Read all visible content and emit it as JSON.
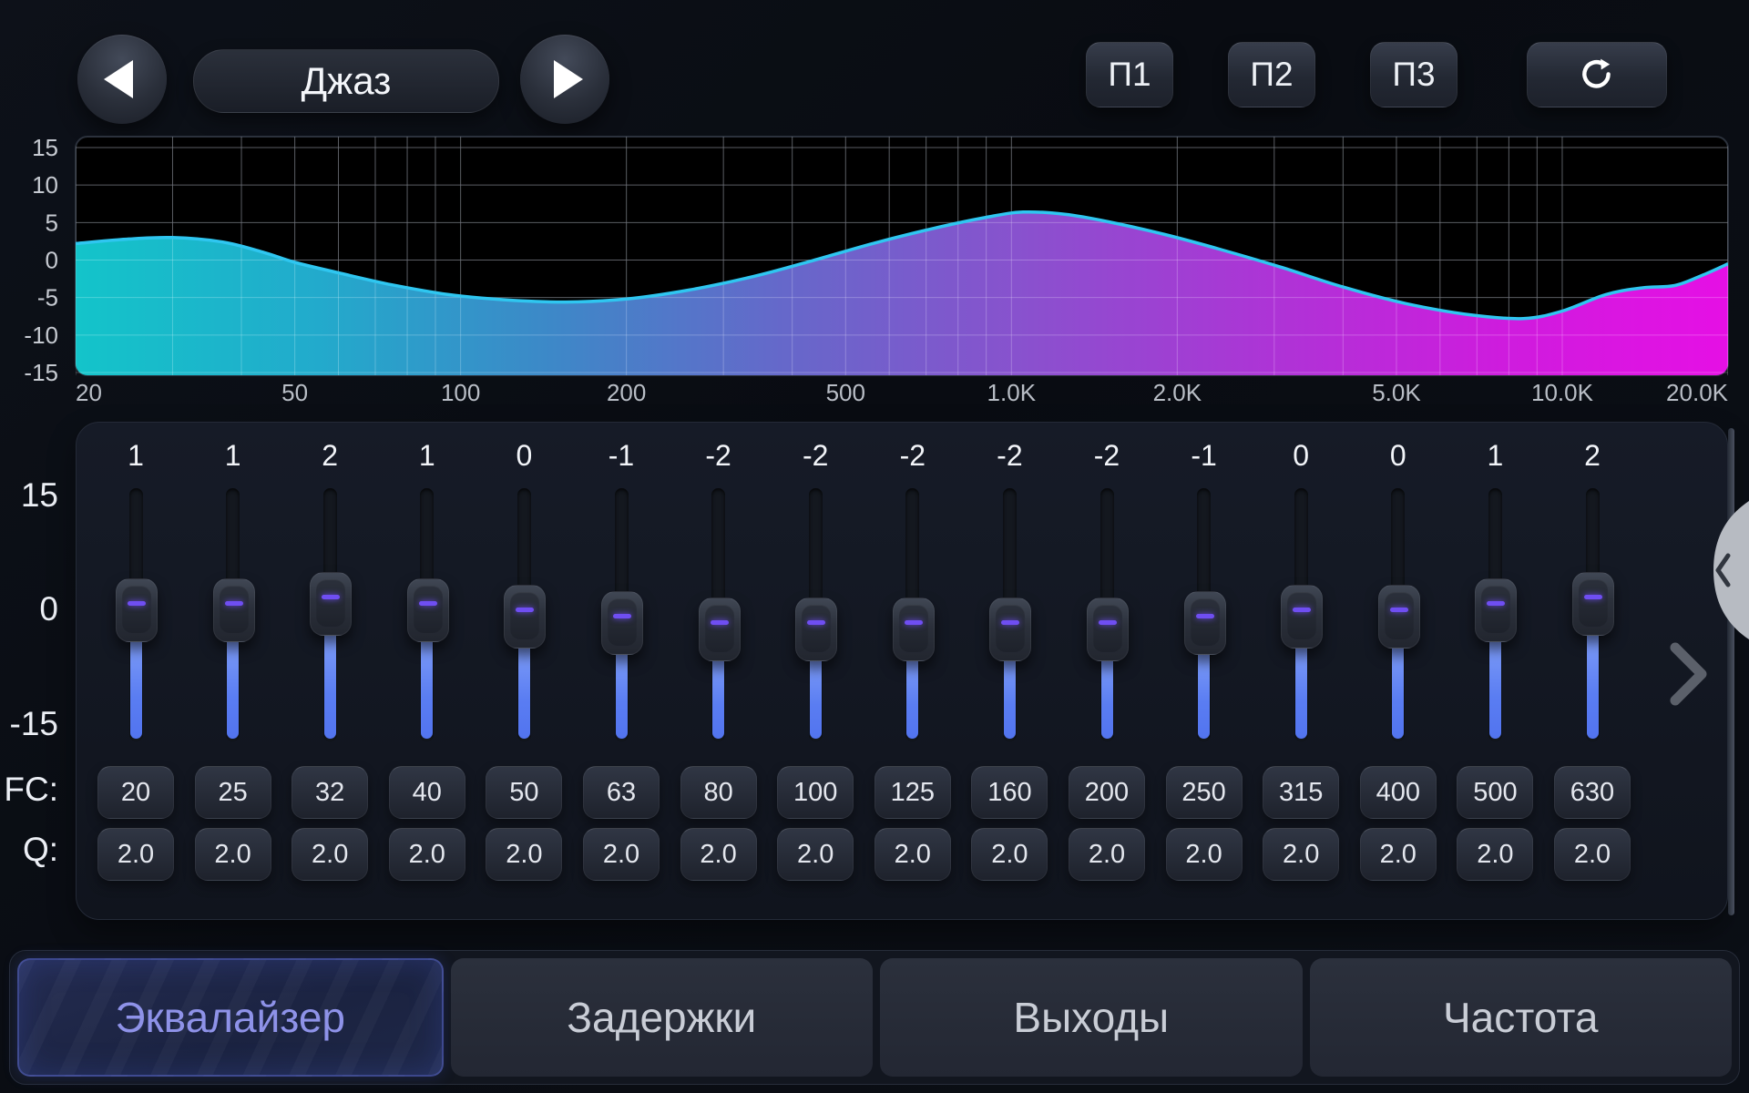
{
  "header": {
    "preset_name": "Джаз",
    "preset_buttons": [
      "П1",
      "П2",
      "П3"
    ],
    "reset_icon": "refresh-clockwise"
  },
  "chart_data": {
    "type": "area",
    "title": "",
    "xlabel": "",
    "ylabel": "",
    "x_axis": {
      "scale": "log",
      "range_hz": [
        20,
        20000
      ],
      "ticks": [
        [
          "20",
          20
        ],
        [
          "50",
          50
        ],
        [
          "100",
          100
        ],
        [
          "200",
          200
        ],
        [
          "500",
          500
        ],
        [
          "1.0K",
          1000
        ],
        [
          "2.0K",
          2000
        ],
        [
          "5.0K",
          5000
        ],
        [
          "10.0K",
          10000
        ],
        [
          "20.0K",
          20000
        ]
      ]
    },
    "y_axis": {
      "range_db": [
        -15,
        15
      ],
      "ticks": [
        15,
        10,
        5,
        0,
        -5,
        -10,
        -15
      ]
    },
    "grid": true,
    "legend": false,
    "curve_points_hz_db": [
      [
        20,
        2.2
      ],
      [
        25,
        2.8
      ],
      [
        30,
        3.0
      ],
      [
        37,
        2.4
      ],
      [
        44,
        1.0
      ],
      [
        50,
        -0.3
      ],
      [
        60,
        -1.7
      ],
      [
        75,
        -3.3
      ],
      [
        95,
        -4.6
      ],
      [
        120,
        -5.3
      ],
      [
        155,
        -5.6
      ],
      [
        200,
        -5.2
      ],
      [
        260,
        -4.0
      ],
      [
        340,
        -2.2
      ],
      [
        430,
        -0.2
      ],
      [
        560,
        2.2
      ],
      [
        720,
        4.2
      ],
      [
        900,
        5.7
      ],
      [
        1050,
        6.4
      ],
      [
        1250,
        6.1
      ],
      [
        1500,
        5.1
      ],
      [
        1900,
        3.4
      ],
      [
        2400,
        1.4
      ],
      [
        3100,
        -1.0
      ],
      [
        4000,
        -3.6
      ],
      [
        5200,
        -5.8
      ],
      [
        6800,
        -7.3
      ],
      [
        8500,
        -7.8
      ],
      [
        10000,
        -6.8
      ],
      [
        12000,
        -4.6
      ],
      [
        14000,
        -3.7
      ],
      [
        16000,
        -3.4
      ],
      [
        18000,
        -2.0
      ],
      [
        20000,
        -0.5
      ]
    ],
    "colors": {
      "plot_bg": "#000000",
      "grid": "#70747c",
      "curve_stroke": "#2fc6f0",
      "fill_gradient": [
        "#14ccd2",
        "#23b2d4",
        "#3f8ed0",
        "#6a6cd2",
        "#8e55d6",
        "#b238de",
        "#d51ee6",
        "#ef10ee"
      ]
    }
  },
  "equalizer": {
    "scale_top": "15",
    "scale_mid": "0",
    "scale_bottom": "-15",
    "fc_label": "FC:",
    "q_label": "Q:",
    "slider_fill_color": "#5a7df2",
    "thumb_dash_color": "#6f4ef2",
    "bands": [
      {
        "gain": 1,
        "fc": "20",
        "q": "2.0"
      },
      {
        "gain": 1,
        "fc": "25",
        "q": "2.0"
      },
      {
        "gain": 2,
        "fc": "32",
        "q": "2.0"
      },
      {
        "gain": 1,
        "fc": "40",
        "q": "2.0"
      },
      {
        "gain": 0,
        "fc": "50",
        "q": "2.0"
      },
      {
        "gain": -1,
        "fc": "63",
        "q": "2.0"
      },
      {
        "gain": -2,
        "fc": "80",
        "q": "2.0"
      },
      {
        "gain": -2,
        "fc": "100",
        "q": "2.0"
      },
      {
        "gain": -2,
        "fc": "125",
        "q": "2.0"
      },
      {
        "gain": -2,
        "fc": "160",
        "q": "2.0"
      },
      {
        "gain": -2,
        "fc": "200",
        "q": "2.0"
      },
      {
        "gain": -1,
        "fc": "250",
        "q": "2.0"
      },
      {
        "gain": 0,
        "fc": "315",
        "q": "2.0"
      },
      {
        "gain": 0,
        "fc": "400",
        "q": "2.0"
      },
      {
        "gain": 1,
        "fc": "500",
        "q": "2.0"
      },
      {
        "gain": 2,
        "fc": "630",
        "q": "2.0"
      }
    ]
  },
  "side_drawer": {
    "collapse_icon": "chevron-left",
    "expand_icon": "chevron-right"
  },
  "tabs": [
    {
      "label": "Эквалайзер",
      "active": true
    },
    {
      "label": "Задержки",
      "active": false
    },
    {
      "label": "Выходы",
      "active": false
    },
    {
      "label": "Частота",
      "active": false
    }
  ]
}
